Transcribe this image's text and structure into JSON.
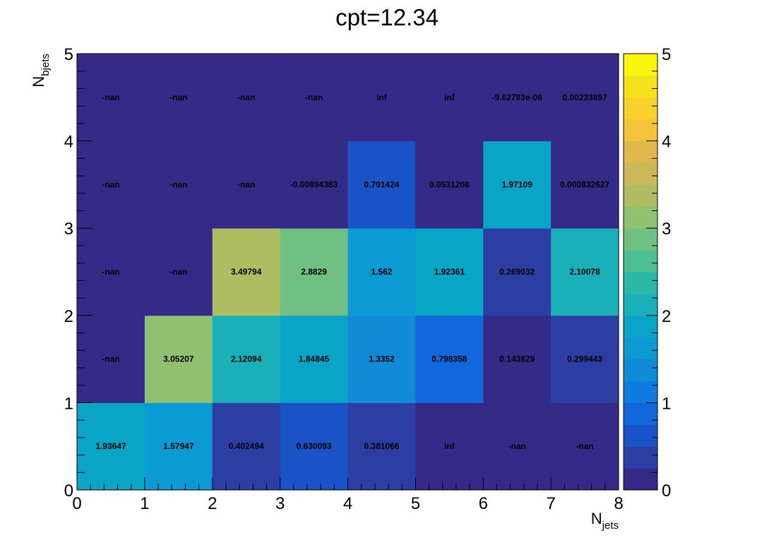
{
  "chart_data": {
    "type": "heatmap",
    "title": "cpt=12.34",
    "xlabel": {
      "main": "N",
      "sub": "jets"
    },
    "ylabel": {
      "main": "N",
      "sub": "bjets"
    },
    "x_edges": [
      0,
      1,
      2,
      3,
      4,
      5,
      6,
      7,
      8
    ],
    "y_edges": [
      0,
      1,
      2,
      3,
      4,
      5
    ],
    "xlim": [
      0,
      8
    ],
    "ylim": [
      0,
      5
    ],
    "x_ticks": [
      "0",
      "1",
      "2",
      "3",
      "4",
      "5",
      "6",
      "7",
      "8"
    ],
    "y_ticks": [
      "0",
      "1",
      "2",
      "3",
      "4",
      "5"
    ],
    "z_range": [
      0,
      5
    ],
    "z_ticks": [
      "0",
      "1",
      "2",
      "3",
      "4",
      "5"
    ],
    "colormap": "parula",
    "palette": [
      "#352a87",
      "#2c3ea3",
      "#1a53c7",
      "#1167dc",
      "#0f7ae0",
      "#108bd8",
      "#0b9ad1",
      "#0aa5c6",
      "#19b0b9",
      "#2cb8a7",
      "#4ebe94",
      "#6fc082",
      "#90c070",
      "#afbd62",
      "#cbb85a",
      "#e0b94c",
      "#f5c23c",
      "#f9d12c",
      "#f6e21c",
      "#f9f50f"
    ],
    "nan_color": "#352a87",
    "rows": [
      {
        "y": "0-1",
        "values": [
          1.93647,
          1.57947,
          0.402494,
          0.630093,
          0.381066,
          "inf",
          "-nan",
          "-nan"
        ],
        "labels": [
          "1.93647",
          "1.57947",
          "0.402494",
          "0.630093",
          "0.381066",
          "inf",
          "-nan",
          "-nan"
        ]
      },
      {
        "y": "1-2",
        "values": [
          "-nan",
          3.05207,
          2.12094,
          1.84845,
          1.3352,
          0.798358,
          0.143829,
          0.299443
        ],
        "labels": [
          "-nan",
          "3.05207",
          "2.12094",
          "1.84845",
          "1.3352",
          "0.798358",
          "0.143829",
          "0.299443"
        ]
      },
      {
        "y": "2-3",
        "values": [
          "-nan",
          "-nan",
          3.49794,
          2.8829,
          1.562,
          1.92361,
          0.269032,
          2.10078
        ],
        "labels": [
          "-nan",
          "-nan",
          "3.49794",
          "2.8829",
          "1.562",
          "1.92361",
          "0.269032",
          "2.10078"
        ]
      },
      {
        "y": "3-4",
        "values": [
          "-nan",
          "-nan",
          "-nan",
          -0.00894383,
          0.701424,
          0.0531208,
          1.97109,
          0.000832627
        ],
        "labels": [
          "-nan",
          "-nan",
          "-nan",
          "-0.00894383",
          "0.701424",
          "0.0531208",
          "1.97109",
          "0.000832627"
        ]
      },
      {
        "y": "4-5",
        "values": [
          "-nan",
          "-nan",
          "-nan",
          "-nan",
          "inf",
          "inf",
          -9.62783e-06,
          0.00233897
        ],
        "labels": [
          "-nan",
          "-nan",
          "-nan",
          "-nan",
          "inf",
          "inf",
          "-9.62783e-06",
          "0.00233897"
        ]
      }
    ],
    "grid": false,
    "legend": "colorbar-right"
  }
}
